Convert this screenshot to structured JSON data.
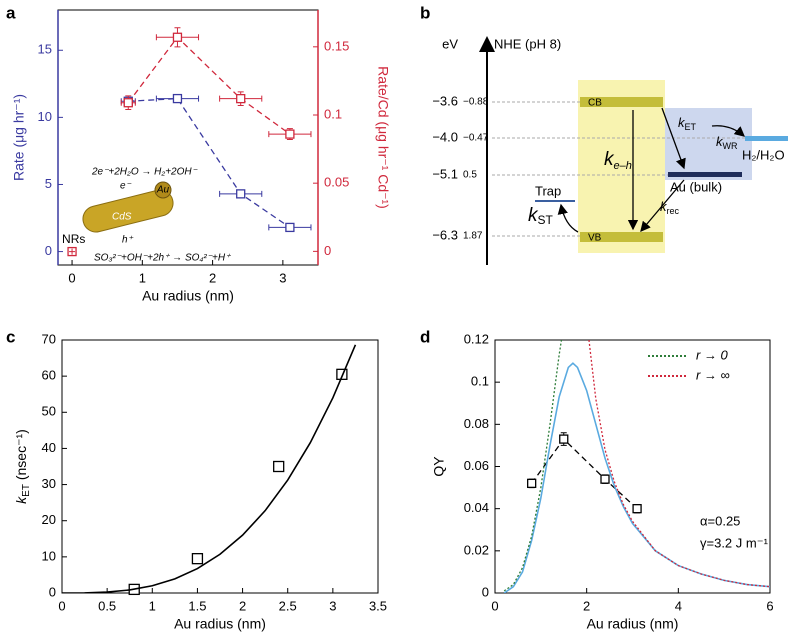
{
  "chart_data": [
    {
      "panel_label": "a",
      "type": "line",
      "xlabel": "Au radius (nm)",
      "ylabel": "Rate (μg hr⁻¹)",
      "y2label": "Rate/Cd (μg hr⁻¹ Cd⁻¹)",
      "xlim": [
        -0.2,
        3.5
      ],
      "xticks": [
        0,
        1,
        2,
        3
      ],
      "ylim": [
        -1,
        18
      ],
      "yticks": [
        0,
        5,
        10,
        15
      ],
      "y2lim": [
        -0.01,
        0.177
      ],
      "y2ticks": [
        0,
        0.05,
        0.1,
        0.15
      ],
      "ycolor": "#3a3aa0",
      "y2color": "#d0283c",
      "series": [
        {
          "color": "#3a3aa0",
          "axis": "y",
          "linestyle": "dashed",
          "marker": "square",
          "x": [
            0.8,
            1.5,
            2.4,
            3.1
          ],
          "values": [
            11.2,
            11.4,
            4.3,
            1.8
          ],
          "xerr": [
            0.1,
            0.3,
            0.3,
            0.3
          ]
        },
        {
          "color": "#d0283c",
          "axis": "y2",
          "linestyle": "dashed",
          "marker": "square",
          "x": [
            0.8,
            1.5,
            2.4,
            3.1
          ],
          "values": [
            0.109,
            0.157,
            0.112,
            0.086
          ],
          "xerr": [
            0.1,
            0.3,
            0.3,
            0.3
          ],
          "yerr": [
            0.005,
            0.007,
            0.005,
            0.004
          ]
        },
        {
          "color": "#d0283c",
          "axis": "y",
          "linestyle": "none",
          "marker": "square-plus",
          "x": [
            0
          ],
          "values": [
            0
          ],
          "label": "NRs"
        }
      ],
      "annotations": [
        "2e⁻+2H₂O → H₂+2OH⁻",
        "e⁻",
        "Au",
        "CdS",
        "h⁺",
        "SO₃²⁻+OH⁻+2h⁺ → SO₄²⁻+H⁺"
      ]
    },
    {
      "panel_label": "c",
      "type": "scatter",
      "xlabel": "Au radius (nm)",
      "ylabel": [
        "k",
        "ET",
        " (nsec⁻¹)"
      ],
      "xlim": [
        0,
        3.5
      ],
      "xticks": [
        0,
        0.5,
        1,
        1.5,
        2,
        2.5,
        3,
        3.5
      ],
      "ylim": [
        0,
        70
      ],
      "yticks": [
        0,
        10,
        20,
        30,
        40,
        50,
        60,
        70
      ],
      "series": [
        {
          "color": "#000000",
          "linestyle": "none",
          "marker": "square",
          "x": [
            0.8,
            1.5,
            2.4,
            3.1
          ],
          "values": [
            1,
            9.5,
            35,
            60.5
          ]
        },
        {
          "color": "#000000",
          "linestyle": "solid",
          "marker": "none",
          "x": [
            0,
            0.25,
            0.5,
            0.75,
            1,
            1.25,
            1.5,
            1.75,
            2,
            2.25,
            2.5,
            2.75,
            3,
            3.25
          ],
          "values": [
            0,
            0.031,
            0.25,
            0.84,
            2,
            3.91,
            6.75,
            10.72,
            16,
            22.78,
            31.25,
            41.59,
            54,
            68.66
          ]
        }
      ]
    },
    {
      "panel_label": "d",
      "type": "line",
      "xlabel": "Au radius (nm)",
      "ylabel": "QY",
      "xlim": [
        0,
        6
      ],
      "xticks": [
        0,
        2,
        4,
        6
      ],
      "ylim": [
        0,
        0.12
      ],
      "yticks": [
        0,
        0.02,
        0.04,
        0.06,
        0.08,
        0.1,
        0.12
      ],
      "series": [
        {
          "color": "#000000",
          "linestyle": "dashed",
          "marker": "square",
          "x": [
            0.8,
            1.5,
            2.4,
            3.1
          ],
          "values": [
            0.052,
            0.073,
            0.054,
            0.04
          ],
          "yerr": [
            0.002,
            0.003,
            0.002,
            0.002
          ]
        },
        {
          "color": "#5aaae0",
          "linestyle": "solid",
          "marker": "none",
          "x": [
            0.2,
            0.4,
            0.6,
            0.8,
            1,
            1.2,
            1.4,
            1.6,
            1.7,
            1.8,
            2,
            2.2,
            2.4,
            2.6,
            2.8,
            3,
            3.5,
            4,
            4.5,
            5,
            5.5,
            6
          ],
          "values": [
            0,
            0.003,
            0.01,
            0.025,
            0.045,
            0.07,
            0.093,
            0.107,
            0.109,
            0.107,
            0.096,
            0.08,
            0.064,
            0.051,
            0.041,
            0.033,
            0.02,
            0.013,
            0.009,
            0.006,
            0.004,
            0.003
          ]
        },
        {
          "name": "r → 0",
          "color": "#2e7d3a",
          "linestyle": "dotted",
          "marker": "none",
          "x": [
            0.2,
            0.4,
            0.6,
            0.8,
            1,
            1.2,
            1.4,
            1.45
          ],
          "values": [
            0.001,
            0.004,
            0.012,
            0.027,
            0.05,
            0.08,
            0.113,
            0.12
          ]
        },
        {
          "name": "r → ∞",
          "color": "#d0283c",
          "linestyle": "dotted",
          "marker": "none",
          "x": [
            2.05,
            2.2,
            2.4,
            2.6,
            2.8,
            3,
            3.5,
            4,
            4.5,
            5,
            5.5,
            6
          ],
          "values": [
            0.12,
            0.092,
            0.068,
            0.053,
            0.042,
            0.034,
            0.02,
            0.013,
            0.009,
            0.006,
            0.004,
            0.003
          ]
        }
      ],
      "annotations": [
        "α=0.25",
        "γ=3.2 J m⁻¹"
      ]
    }
  ],
  "energy_diagram": {
    "panel_label": "b",
    "axis_unit": "eV",
    "reference": "NHE (pH 8)",
    "levels_eV": [
      "−3.6",
      "−4.0",
      "−5.1",
      "−6.3"
    ],
    "levels_NHE": [
      "−0.88",
      "−0.47",
      "0.5",
      "1.87"
    ],
    "cb": "CB",
    "vb": "VB",
    "metal": "Au (bulk)",
    "acceptor": "H₂/H₂O",
    "trap": "Trap",
    "k_eh": [
      "k",
      "e–h"
    ],
    "k_ET": [
      "k",
      "ET"
    ],
    "k_WR": [
      "k",
      "WR"
    ],
    "k_rec": [
      "k",
      "rec"
    ],
    "k_ST": [
      "k",
      "ST"
    ]
  }
}
